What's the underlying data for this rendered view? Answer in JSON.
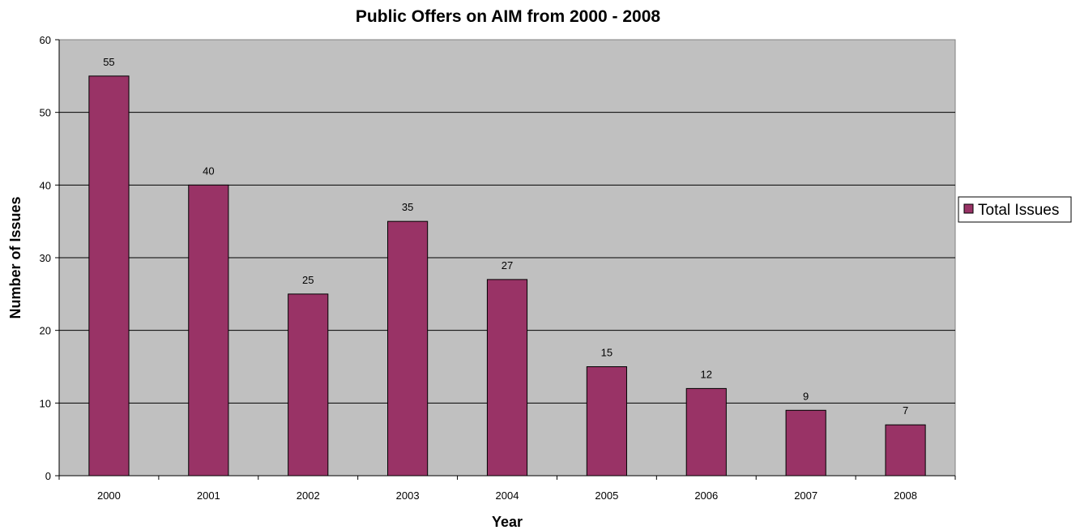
{
  "chart_data": {
    "type": "bar",
    "title": "Public Offers on AIM from 2000 - 2008",
    "xlabel": "Year",
    "ylabel": "Number of Issues",
    "categories": [
      "2000",
      "2001",
      "2002",
      "2003",
      "2004",
      "2005",
      "2006",
      "2007",
      "2008"
    ],
    "series": [
      {
        "name": "Total Issues",
        "values": [
          55,
          40,
          25,
          35,
          27,
          15,
          12,
          9,
          7
        ],
        "color": "#993366"
      }
    ],
    "ylim": [
      0,
      60
    ],
    "yticks": [
      0,
      10,
      20,
      30,
      40,
      50,
      60
    ],
    "grid": true,
    "legend_position": "right",
    "plot_background": "#c0c0c0",
    "data_labels": true
  }
}
